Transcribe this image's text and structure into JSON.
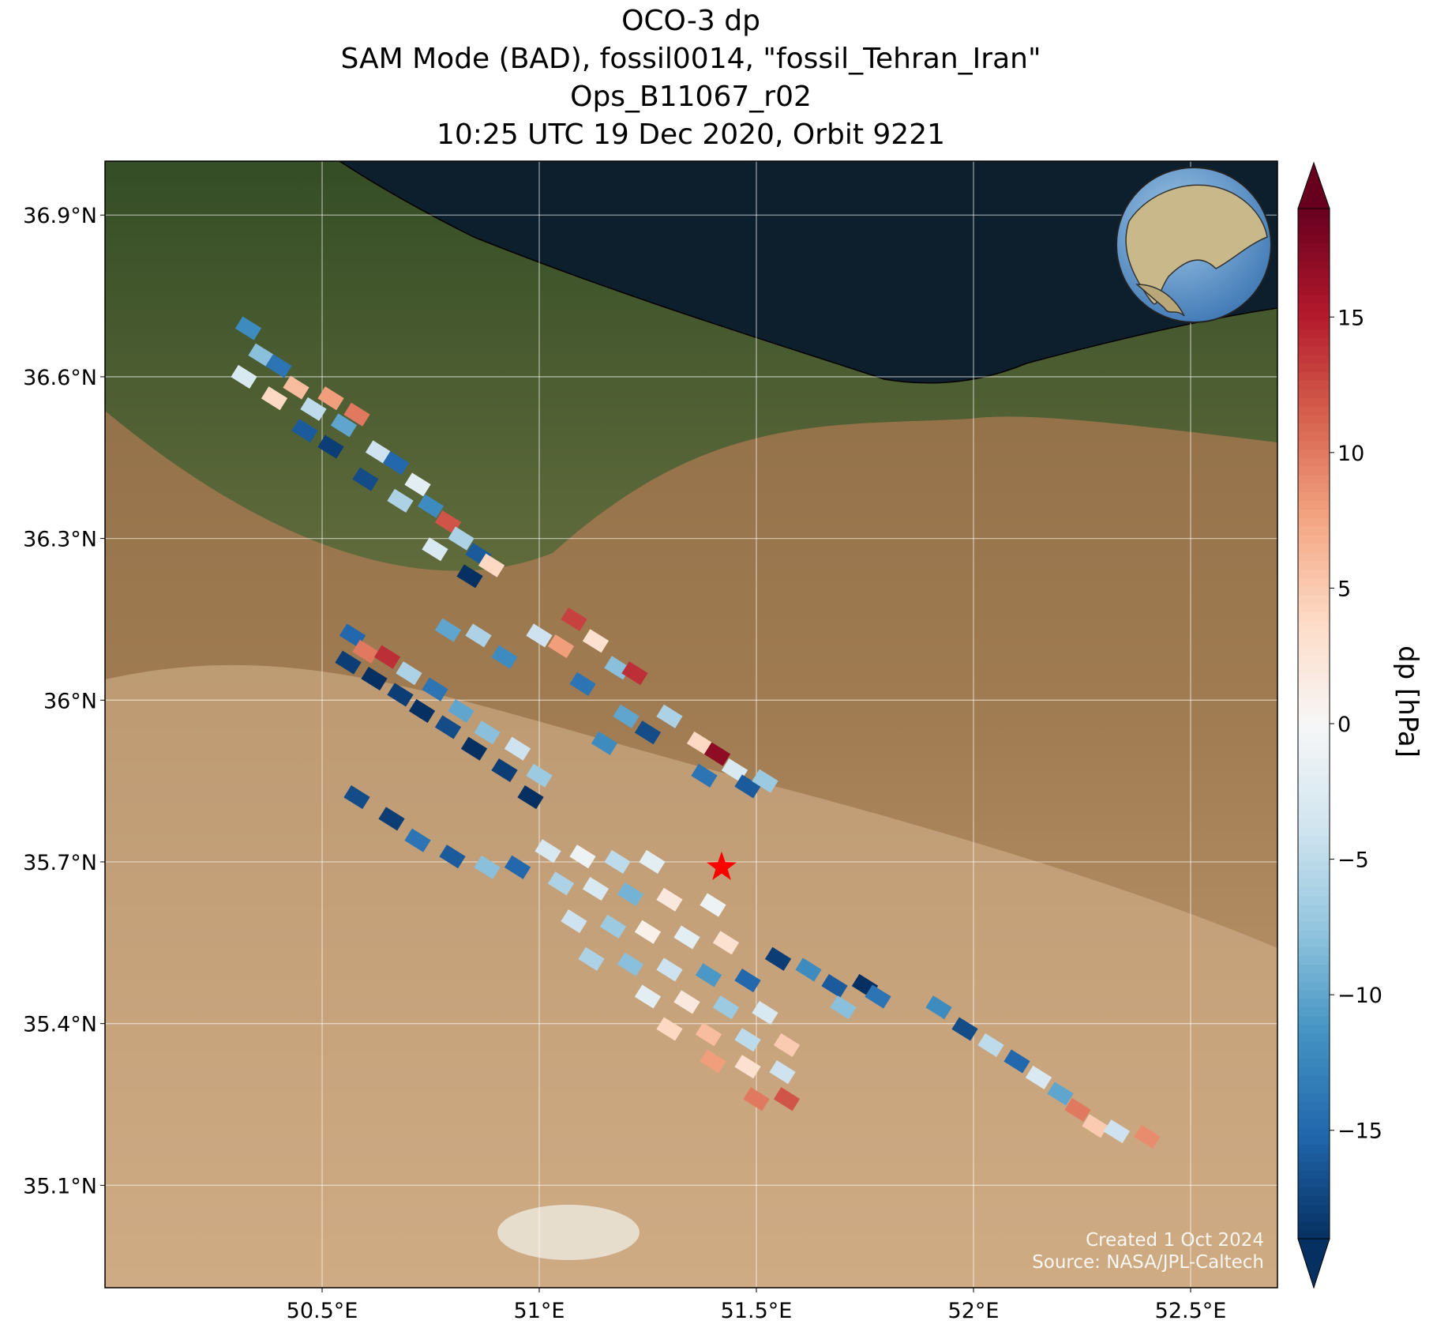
{
  "chart_data": {
    "type": "map",
    "title": [
      "OCO-3 dp",
      "SAM Mode (BAD), fossil0014, \"fossil_Tehran_Iran\"",
      "Ops_B11067_r02",
      "10:25 UTC 19 Dec 2020, Orbit 9221"
    ],
    "xlim": [
      50.0,
      52.7
    ],
    "ylim": [
      34.91,
      37.0
    ],
    "xticks": [
      {
        "value": 50.5,
        "label": "50.5°E"
      },
      {
        "value": 51,
        "label": "51°E"
      },
      {
        "value": 51.5,
        "label": "51.5°E"
      },
      {
        "value": 52,
        "label": "52°E"
      },
      {
        "value": 52.5,
        "label": "52.5°E"
      }
    ],
    "yticks": [
      {
        "value": 35.1,
        "label": "35.1°N"
      },
      {
        "value": 35.4,
        "label": "35.4°N"
      },
      {
        "value": 35.7,
        "label": "35.7°N"
      },
      {
        "value": 36,
        "label": "36°N"
      },
      {
        "value": 36.3,
        "label": "36.3°N"
      },
      {
        "value": 36.6,
        "label": "36.6°N"
      },
      {
        "value": 36.9,
        "label": "36.9°N"
      }
    ],
    "grid": true,
    "target": [
      51.42,
      35.69
    ],
    "target_color": "#ff0000",
    "colorbar": {
      "label": "dp [hPa]",
      "lim": [
        -19,
        19
      ],
      "ticks": [
        {
          "value": -15,
          "label": "−15"
        },
        {
          "value": -10,
          "label": "−10"
        },
        {
          "value": -5,
          "label": "−5"
        },
        0,
        5,
        10,
        15
      ],
      "colors": [
        "#053061",
        "#2166ac",
        "#4393c3",
        "#92c5de",
        "#d1e5f0",
        "#f7f7f7",
        "#fddbc7",
        "#f4a582",
        "#d6604d",
        "#b2182b",
        "#67001f"
      ]
    },
    "credits": [
      "Created 1 Oct 2024",
      "Source: NASA/JPL-Caltech"
    ],
    "soundings": [
      [
        50.33,
        36.69,
        -12
      ],
      [
        50.36,
        36.64,
        -8
      ],
      [
        50.32,
        36.6,
        -3
      ],
      [
        50.4,
        36.62,
        -14
      ],
      [
        50.44,
        36.58,
        6
      ],
      [
        50.39,
        36.56,
        4
      ],
      [
        50.48,
        36.54,
        -5
      ],
      [
        50.52,
        36.56,
        8
      ],
      [
        50.46,
        36.5,
        -16
      ],
      [
        50.55,
        36.51,
        -10
      ],
      [
        50.58,
        36.53,
        10
      ],
      [
        50.52,
        36.47,
        -18
      ],
      [
        50.63,
        36.46,
        -4
      ],
      [
        50.67,
        36.44,
        -15
      ],
      [
        50.6,
        36.41,
        -17
      ],
      [
        50.72,
        36.4,
        -2
      ],
      [
        50.75,
        36.36,
        -12
      ],
      [
        50.68,
        36.37,
        -6
      ],
      [
        50.79,
        36.33,
        12
      ],
      [
        50.82,
        36.3,
        -6
      ],
      [
        50.76,
        36.28,
        -3
      ],
      [
        50.86,
        36.27,
        -16
      ],
      [
        50.89,
        36.25,
        4
      ],
      [
        50.84,
        36.23,
        -19
      ],
      [
        50.57,
        36.12,
        -15
      ],
      [
        50.6,
        36.09,
        10
      ],
      [
        50.56,
        36.07,
        -18
      ],
      [
        50.65,
        36.08,
        14
      ],
      [
        50.62,
        36.04,
        -19
      ],
      [
        50.7,
        36.05,
        -6
      ],
      [
        50.68,
        36.01,
        -18
      ],
      [
        50.76,
        36.02,
        -14
      ],
      [
        50.73,
        35.98,
        -19
      ],
      [
        50.82,
        35.98,
        -10
      ],
      [
        50.79,
        35.95,
        -17
      ],
      [
        50.88,
        35.94,
        -8
      ],
      [
        50.85,
        35.91,
        -19
      ],
      [
        50.95,
        35.91,
        -4
      ],
      [
        50.92,
        35.87,
        -18
      ],
      [
        51.0,
        35.86,
        -7
      ],
      [
        50.98,
        35.82,
        -19
      ],
      [
        50.79,
        36.13,
        -10
      ],
      [
        50.86,
        36.12,
        -6
      ],
      [
        50.92,
        36.08,
        -12
      ],
      [
        51.0,
        36.12,
        -4
      ],
      [
        51.05,
        36.1,
        8
      ],
      [
        51.08,
        36.15,
        13
      ],
      [
        51.13,
        36.11,
        3
      ],
      [
        51.18,
        36.06,
        -8
      ],
      [
        51.1,
        36.03,
        -14
      ],
      [
        51.22,
        36.05,
        14
      ],
      [
        51.2,
        35.97,
        -10
      ],
      [
        51.25,
        35.94,
        -17
      ],
      [
        51.3,
        35.97,
        -6
      ],
      [
        51.37,
        35.92,
        4
      ],
      [
        51.41,
        35.9,
        17
      ],
      [
        51.45,
        35.87,
        -3
      ],
      [
        51.38,
        35.86,
        -14
      ],
      [
        51.48,
        35.84,
        -16
      ],
      [
        51.52,
        35.85,
        -7
      ],
      [
        51.15,
        35.92,
        -12
      ],
      [
        50.58,
        35.82,
        -17
      ],
      [
        50.66,
        35.78,
        -18
      ],
      [
        50.72,
        35.74,
        -14
      ],
      [
        50.8,
        35.71,
        -16
      ],
      [
        50.88,
        35.69,
        -8
      ],
      [
        50.95,
        35.69,
        -15
      ],
      [
        51.02,
        35.72,
        -3
      ],
      [
        51.1,
        35.71,
        -1
      ],
      [
        51.18,
        35.7,
        -5
      ],
      [
        51.26,
        35.7,
        -2
      ],
      [
        51.05,
        35.66,
        -6
      ],
      [
        51.13,
        35.65,
        -3
      ],
      [
        51.21,
        35.64,
        -9
      ],
      [
        51.3,
        35.63,
        2
      ],
      [
        51.4,
        35.62,
        -1
      ],
      [
        51.08,
        35.59,
        -4
      ],
      [
        51.17,
        35.58,
        -7
      ],
      [
        51.25,
        35.57,
        1
      ],
      [
        51.34,
        35.56,
        -2
      ],
      [
        51.43,
        35.55,
        3
      ],
      [
        51.12,
        35.52,
        -6
      ],
      [
        51.21,
        35.51,
        -8
      ],
      [
        51.3,
        35.5,
        -4
      ],
      [
        51.39,
        35.49,
        -11
      ],
      [
        51.48,
        35.48,
        -15
      ],
      [
        51.25,
        35.45,
        -2
      ],
      [
        51.34,
        35.44,
        2
      ],
      [
        51.43,
        35.43,
        -7
      ],
      [
        51.52,
        35.42,
        -3
      ],
      [
        51.3,
        35.39,
        4
      ],
      [
        51.39,
        35.38,
        6
      ],
      [
        51.48,
        35.37,
        -5
      ],
      [
        51.57,
        35.36,
        5
      ],
      [
        51.4,
        35.33,
        8
      ],
      [
        51.48,
        35.32,
        3
      ],
      [
        51.56,
        35.31,
        -4
      ],
      [
        51.5,
        35.26,
        10
      ],
      [
        51.57,
        35.26,
        12
      ],
      [
        51.55,
        35.52,
        -18
      ],
      [
        51.62,
        35.5,
        -12
      ],
      [
        51.68,
        35.47,
        -16
      ],
      [
        51.75,
        35.47,
        -19
      ],
      [
        51.7,
        35.43,
        -8
      ],
      [
        51.78,
        35.45,
        -14
      ],
      [
        51.92,
        35.43,
        -12
      ],
      [
        51.98,
        35.39,
        -17
      ],
      [
        52.04,
        35.36,
        -5
      ],
      [
        52.1,
        35.33,
        -15
      ],
      [
        52.15,
        35.3,
        -3
      ],
      [
        52.2,
        35.27,
        -10
      ],
      [
        52.24,
        35.24,
        10
      ],
      [
        52.28,
        35.21,
        5
      ],
      [
        52.33,
        35.2,
        -4
      ],
      [
        52.4,
        35.19,
        9
      ]
    ]
  }
}
